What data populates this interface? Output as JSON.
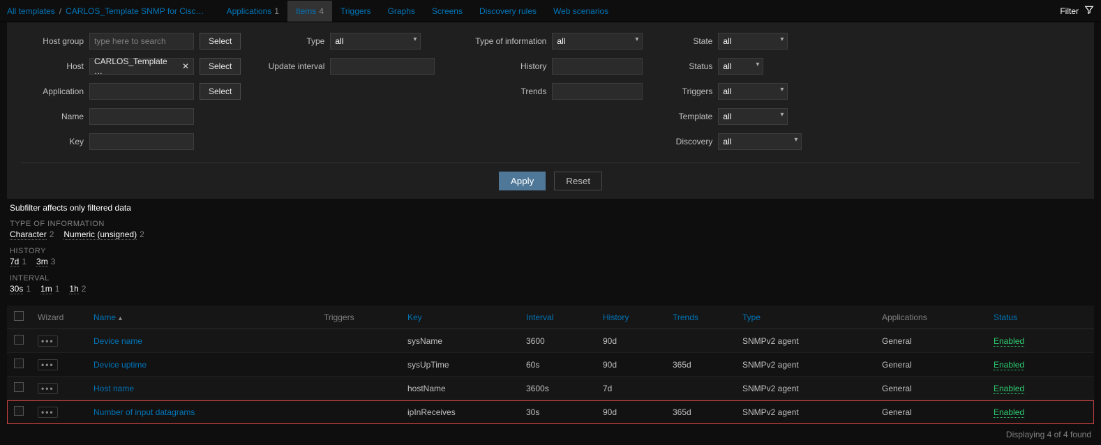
{
  "topnav": {
    "breadcrumb": {
      "all_templates": "All templates",
      "template_name": "CARLOS_Template SNMP for Cisc…"
    },
    "tabs": [
      {
        "label": "Applications",
        "count": "1",
        "active": false
      },
      {
        "label": "Items",
        "count": "4",
        "active": true
      },
      {
        "label": "Triggers",
        "count": "",
        "active": false
      },
      {
        "label": "Graphs",
        "count": "",
        "active": false
      },
      {
        "label": "Screens",
        "count": "",
        "active": false
      },
      {
        "label": "Discovery rules",
        "count": "",
        "active": false
      },
      {
        "label": "Web scenarios",
        "count": "",
        "active": false
      }
    ],
    "filter_label": "Filter"
  },
  "filter": {
    "labels": {
      "host_group": "Host group",
      "host": "Host",
      "application": "Application",
      "name": "Name",
      "key": "Key",
      "type": "Type",
      "update_interval": "Update interval",
      "type_of_information": "Type of information",
      "history": "History",
      "trends": "Trends",
      "state": "State",
      "status": "Status",
      "triggers": "Triggers",
      "template": "Template",
      "discovery": "Discovery"
    },
    "host_group_placeholder": "type here to search",
    "host_value": "CARLOS_Template …",
    "select_button": "Select",
    "option_all": "all",
    "apply": "Apply",
    "reset": "Reset"
  },
  "subfilter": {
    "title": "Subfilter",
    "title_suffix": "affects only filtered data",
    "sections": [
      {
        "heading": "TYPE OF INFORMATION",
        "items": [
          {
            "label": "Character",
            "count": "2"
          },
          {
            "label": "Numeric (unsigned)",
            "count": "2"
          }
        ]
      },
      {
        "heading": "HISTORY",
        "items": [
          {
            "label": "7d",
            "count": "1"
          },
          {
            "label": "3m",
            "count": "3"
          }
        ]
      },
      {
        "heading": "INTERVAL",
        "items": [
          {
            "label": "30s",
            "count": "1"
          },
          {
            "label": "1m",
            "count": "1"
          },
          {
            "label": "1h",
            "count": "2"
          }
        ]
      }
    ]
  },
  "table": {
    "columns": {
      "wizard": "Wizard",
      "name": "Name",
      "triggers": "Triggers",
      "key": "Key",
      "interval": "Interval",
      "history": "History",
      "trends": "Trends",
      "type": "Type",
      "applications": "Applications",
      "status": "Status"
    },
    "rows": [
      {
        "name": "Device name",
        "key": "sysName",
        "interval": "3600",
        "history": "90d",
        "trends": "",
        "type": "SNMPv2 agent",
        "applications": "General",
        "status": "Enabled",
        "highlighted": false
      },
      {
        "name": "Device uptime",
        "key": "sysUpTime",
        "interval": "60s",
        "history": "90d",
        "trends": "365d",
        "type": "SNMPv2 agent",
        "applications": "General",
        "status": "Enabled",
        "highlighted": false
      },
      {
        "name": "Host name",
        "key": "hostName",
        "interval": "3600s",
        "history": "7d",
        "trends": "",
        "type": "SNMPv2 agent",
        "applications": "General",
        "status": "Enabled",
        "highlighted": false
      },
      {
        "name": "Number of input datagrams",
        "key": "ipInReceives",
        "interval": "30s",
        "history": "90d",
        "trends": "365d",
        "type": "SNMPv2 agent",
        "applications": "General",
        "status": "Enabled",
        "highlighted": true
      }
    ]
  },
  "footer": {
    "text": "Displaying 4 of 4 found"
  }
}
